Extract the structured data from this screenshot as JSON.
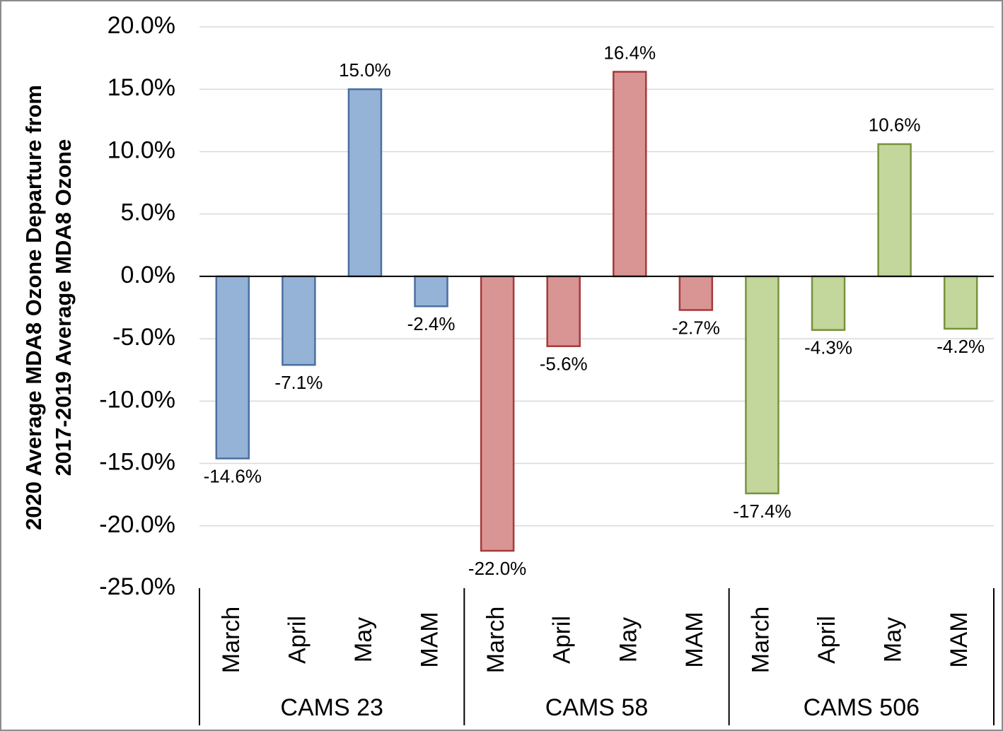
{
  "chart_data": {
    "type": "bar",
    "y_label": [
      "2020 Average MDA8 Ozone Departure from",
      "2017-2019 Average MDA8 Ozone"
    ],
    "categories": [
      "March",
      "April",
      "May",
      "MAM"
    ],
    "series": [
      {
        "name": "CAMS 23",
        "color": "#95b3d7",
        "stroke": "#4a6fa0",
        "values": [
          -14.6,
          -7.1,
          15.0,
          -2.4
        ],
        "value_labels": [
          "-14.6%",
          "-7.1%",
          "15.0%",
          "-2.4%"
        ]
      },
      {
        "name": "CAMS 58",
        "color": "#d99594",
        "stroke": "#a6393a",
        "values": [
          -22.0,
          -5.6,
          16.4,
          -2.7
        ],
        "value_labels": [
          "-22.0%",
          "-5.6%",
          "16.4%",
          "-2.7%"
        ]
      },
      {
        "name": "CAMS 506",
        "color": "#c3d69b",
        "stroke": "#77933c",
        "values": [
          -17.4,
          -4.3,
          10.6,
          -4.2
        ],
        "value_labels": [
          "-17.4%",
          "-4.3%",
          "10.6%",
          "-4.2%"
        ]
      }
    ],
    "ylim": [
      -25,
      20
    ],
    "yticks": [
      {
        "value": 20,
        "label": "20.0%"
      },
      {
        "value": 15,
        "label": "15.0%"
      },
      {
        "value": 10,
        "label": "10.0%"
      },
      {
        "value": 5,
        "label": "5.0%"
      },
      {
        "value": 0,
        "label": "0.0%"
      },
      {
        "value": -5,
        "label": "-5.0%"
      },
      {
        "value": -10,
        "label": "-10.0%"
      },
      {
        "value": -15,
        "label": "-15.0%"
      },
      {
        "value": -20,
        "label": "-20.0%"
      },
      {
        "value": -25,
        "label": "-25.0%"
      }
    ],
    "grid": true
  }
}
